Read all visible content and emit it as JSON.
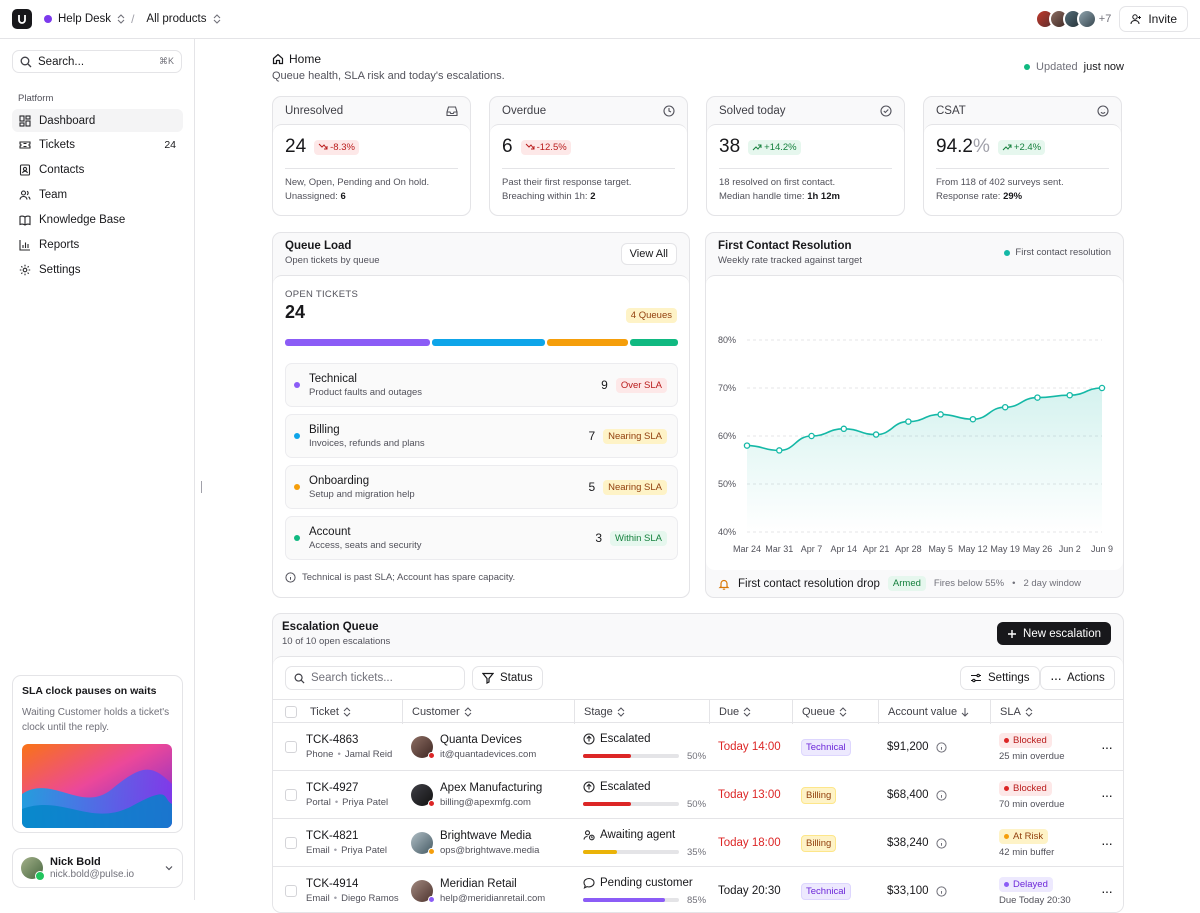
{
  "topbar": {
    "workspace": "Help Desk",
    "workspace_color": "#7c3aed",
    "product": "All products",
    "avatars_more": "+7",
    "invite": "Invite"
  },
  "sidebar": {
    "search_placeholder": "Search...",
    "search_shortcut": "⌘K",
    "section": "Platform",
    "items": [
      {
        "label": "Dashboard",
        "icon": "dashboard-icon",
        "active": true
      },
      {
        "label": "Tickets",
        "icon": "ticket-icon",
        "count": "24"
      },
      {
        "label": "Contacts",
        "icon": "contacts-icon"
      },
      {
        "label": "Team",
        "icon": "team-icon"
      },
      {
        "label": "Knowledge Base",
        "icon": "book-icon"
      },
      {
        "label": "Reports",
        "icon": "bar-chart-icon"
      },
      {
        "label": "Settings",
        "icon": "gear-icon"
      }
    ],
    "promo": {
      "title": "SLA clock pauses on waits",
      "text": "Waiting Customer holds a ticket's clock until the reply."
    },
    "user": {
      "name": "Nick Bold",
      "email": "nick.bold@pulse.io"
    }
  },
  "page": {
    "title": "Home",
    "subtitle": "Queue health, SLA risk and today's escalations.",
    "updated_prefix": "Updated",
    "updated_value": "just now"
  },
  "kpis": [
    {
      "label": "Unresolved",
      "icon": "inbox-icon",
      "value": "24",
      "suffix": "",
      "delta": "-8.3%",
      "trend": "down",
      "note1": "New, Open, Pending and On hold.",
      "note2_label": "Unassigned:",
      "note2_value": "6"
    },
    {
      "label": "Overdue",
      "icon": "clock-icon",
      "value": "6",
      "suffix": "",
      "delta": "-12.5%",
      "trend": "down",
      "note1": "Past their first response target.",
      "note2_label": "Breaching within 1h:",
      "note2_value": "2"
    },
    {
      "label": "Solved today",
      "icon": "check-circle-icon",
      "value": "38",
      "suffix": "",
      "delta": "+14.2%",
      "trend": "up",
      "note1": "18 resolved on first contact.",
      "note2_label": "Median handle time:",
      "note2_value": "1h 12m"
    },
    {
      "label": "CSAT",
      "icon": "smile-icon",
      "value": "94.2",
      "suffix": "%",
      "delta": "+2.4%",
      "trend": "up",
      "note1": "From 118 of 402 surveys sent.",
      "note2_label": "Response rate:",
      "note2_value": "29%"
    }
  ],
  "queue_load": {
    "title": "Queue Load",
    "subtitle": "Open tickets by queue",
    "view_all": "View All",
    "open_label": "OPEN TICKETS",
    "open_total": "24",
    "queues_badge": "4 Queues",
    "queues": [
      {
        "name": "Technical",
        "desc": "Product faults and outages",
        "count": "9",
        "count_value": 9,
        "sla": "Over SLA",
        "tone": "red",
        "color": "#8b5cf6"
      },
      {
        "name": "Billing",
        "desc": "Invoices, refunds and plans",
        "count": "7",
        "count_value": 7,
        "sla": "Nearing SLA",
        "tone": "amber",
        "color": "#0ea5e9"
      },
      {
        "name": "Onboarding",
        "desc": "Setup and migration help",
        "count": "5",
        "count_value": 5,
        "sla": "Nearing SLA",
        "tone": "amber",
        "color": "#f59e0b"
      },
      {
        "name": "Account",
        "desc": "Access, seats and security",
        "count": "3",
        "count_value": 3,
        "sla": "Within SLA",
        "tone": "green",
        "color": "#10b981"
      }
    ],
    "note": "Technical is past SLA; Account has spare capacity."
  },
  "fcr": {
    "title": "First Contact Resolution",
    "subtitle": "Weekly rate tracked against target",
    "alert_title": "First contact resolution drop",
    "alert_status": "Armed",
    "alert_meta1": "Fires below 55%",
    "alert_meta2": "2 day window"
  },
  "chart_data": {
    "type": "line",
    "x": [
      "Mar 24",
      "Mar 31",
      "Apr 7",
      "Apr 14",
      "Apr 21",
      "Apr 28",
      "May 5",
      "May 12",
      "May 19",
      "May 26",
      "Jun 2",
      "Jun 9"
    ],
    "series": [
      {
        "name": "First contact resolution",
        "values": [
          58,
          57,
          60,
          61.5,
          60.3,
          63,
          64.5,
          63.5,
          66,
          68,
          68.5,
          70
        ],
        "color": "#14b8a6"
      }
    ],
    "yticks": [
      "80%",
      "70%",
      "60%",
      "50%",
      "40%"
    ],
    "ylim": [
      40,
      80
    ],
    "grid": true,
    "legend": "top-right"
  },
  "escalations": {
    "title": "Escalation Queue",
    "subtitle": "10 of 10 open escalations",
    "new_button": "New escalation",
    "search_placeholder": "Search tickets...",
    "status_button": "Status",
    "settings_button": "Settings",
    "actions_button": "Actions",
    "columns": [
      "Ticket",
      "Customer",
      "Stage",
      "Due",
      "Queue",
      "Account value",
      "SLA"
    ],
    "rows": [
      {
        "id": "TCK-4863",
        "channel": "Phone",
        "agent": "Jamal Reid",
        "customer": "Quanta Devices",
        "email": "it@quantadevices.com",
        "stage": "Escalated",
        "stage_icon": "arrow-up-circle-icon",
        "progress": "50%",
        "progress_value": 0.5,
        "progress_color": "#dc2626",
        "due": "Today 14:00",
        "due_overdue": true,
        "queue": "Technical",
        "queue_tone": "tech",
        "value": "$91,200",
        "sla": "Blocked",
        "sla_tone": "red",
        "sla_note": "25 min overdue",
        "status_color": "#dc2626"
      },
      {
        "id": "TCK-4927",
        "channel": "Portal",
        "agent": "Priya Patel",
        "customer": "Apex Manufacturing",
        "email": "billing@apexmfg.com",
        "stage": "Escalated",
        "stage_icon": "arrow-up-circle-icon",
        "progress": "50%",
        "progress_value": 0.5,
        "progress_color": "#dc2626",
        "due": "Today 13:00",
        "due_overdue": true,
        "queue": "Billing",
        "queue_tone": "bill",
        "value": "$68,400",
        "sla": "Blocked",
        "sla_tone": "red",
        "sla_note": "70 min overdue",
        "status_color": "#dc2626"
      },
      {
        "id": "TCK-4821",
        "channel": "Email",
        "agent": "Priya Patel",
        "customer": "Brightwave Media",
        "email": "ops@brightwave.media",
        "stage": "Awaiting agent",
        "stage_icon": "user-clock-icon",
        "progress": "35%",
        "progress_value": 0.35,
        "progress_color": "#eab308",
        "due": "Today 18:00",
        "due_overdue": true,
        "queue": "Billing",
        "queue_tone": "bill",
        "value": "$38,240",
        "sla": "At Risk",
        "sla_tone": "amber",
        "sla_note": "42 min buffer",
        "status_color": "#f59e0b"
      },
      {
        "id": "TCK-4914",
        "channel": "Email",
        "agent": "Diego Ramos",
        "customer": "Meridian Retail",
        "email": "help@meridianretail.com",
        "stage": "Pending customer",
        "stage_icon": "message-icon",
        "progress": "85%",
        "progress_value": 0.85,
        "progress_color": "#8b5cf6",
        "due": "Today 20:30",
        "due_overdue": false,
        "queue": "Technical",
        "queue_tone": "tech",
        "value": "$33,100",
        "sla": "Delayed",
        "sla_tone": "purple",
        "sla_note": "Due Today 20:30",
        "status_color": "#8b5cf6"
      }
    ]
  }
}
